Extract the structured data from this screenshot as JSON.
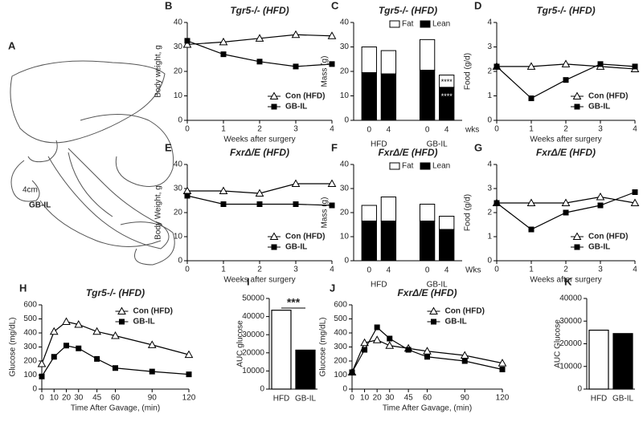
{
  "diagram": {
    "panel": "A",
    "labels": [
      "4cm",
      "GB-IL"
    ]
  },
  "chart_data": [
    {
      "type": "line",
      "panel": "B",
      "title": "Tgr5-/- (HFD)",
      "ylabel": "Body weight, g",
      "xlabel": "Weeks after surgery",
      "x": [
        0,
        1,
        2,
        3,
        4
      ],
      "xlim": [
        0,
        4
      ],
      "xticks": [
        0,
        1,
        2,
        3,
        4
      ],
      "ylim": [
        0,
        40
      ],
      "yticks": [
        0,
        10,
        20,
        30,
        40
      ],
      "legend": "lower right",
      "series": [
        {
          "name": "Con (HFD)",
          "color": "#000000",
          "marker": "triangle-open",
          "values": [
            31,
            32,
            33.5,
            35,
            34.5
          ]
        },
        {
          "name": "GB-IL",
          "color": "#000000",
          "marker": "square",
          "values": [
            32.5,
            27,
            24,
            22,
            23
          ]
        }
      ]
    },
    {
      "type": "stacked_bar",
      "panel": "C",
      "title": "Tgr5-/- (HFD)",
      "ylabel": "Mass (g)",
      "xlabel": "wks",
      "categories": [
        "0",
        "4",
        "0",
        "4"
      ],
      "groups": [
        "HFD",
        "GB-IL"
      ],
      "ylim": [
        0,
        40
      ],
      "yticks": [
        0,
        10,
        20,
        30,
        40
      ],
      "annotations": [
        "****",
        "****"
      ],
      "series": [
        {
          "name": "Fat",
          "color": "#ffffff",
          "values": [
            10.5,
            9.5,
            12.5,
            5
          ]
        },
        {
          "name": "Lean",
          "color": "#000000",
          "values": [
            19.5,
            19,
            20.5,
            13.5
          ]
        }
      ]
    },
    {
      "type": "line",
      "panel": "D",
      "title": "Tgr5-/- (HFD)",
      "ylabel": "Food (g/d)",
      "xlabel": "Weeks after surgery",
      "x": [
        0,
        1,
        2,
        3,
        4
      ],
      "xlim": [
        0,
        4
      ],
      "xticks": [
        0,
        1,
        2,
        3,
        4
      ],
      "ylim": [
        0,
        4
      ],
      "yticks": [
        0,
        1,
        2,
        3,
        4
      ],
      "legend": "lower right",
      "series": [
        {
          "name": "Con (HFD)",
          "color": "#000000",
          "marker": "triangle-open",
          "values": [
            2.2,
            2.2,
            2.3,
            2.2,
            2.1
          ]
        },
        {
          "name": "GB-IL",
          "color": "#000000",
          "marker": "square",
          "values": [
            2.2,
            0.9,
            1.65,
            2.3,
            2.2
          ]
        }
      ]
    },
    {
      "type": "line",
      "panel": "E",
      "title": "FxrΔ/E (HFD)",
      "ylabel": "Body Weight, g",
      "xlabel": "Weeks after surgery",
      "x": [
        0,
        1,
        2,
        3,
        4
      ],
      "xlim": [
        0,
        4
      ],
      "xticks": [
        0,
        1,
        2,
        3,
        4
      ],
      "ylim": [
        0,
        40
      ],
      "yticks": [
        0,
        10,
        20,
        30,
        40
      ],
      "legend": "lower right",
      "series": [
        {
          "name": "Con (HFD)",
          "color": "#000000",
          "marker": "triangle-open",
          "values": [
            29,
            29,
            28,
            32,
            32
          ]
        },
        {
          "name": "GB-IL",
          "color": "#000000",
          "marker": "square",
          "values": [
            27,
            23.5,
            23.5,
            23.5,
            23
          ]
        }
      ]
    },
    {
      "type": "stacked_bar",
      "panel": "F",
      "title": "FxrΔ/E (HFD)",
      "ylabel": "Mass (g)",
      "xlabel": "Wks",
      "categories": [
        "0",
        "4",
        "0",
        "4"
      ],
      "groups": [
        "HFD",
        "GB-IL"
      ],
      "ylim": [
        0,
        40
      ],
      "yticks": [
        0,
        10,
        20,
        30,
        40
      ],
      "annotations": [],
      "series": [
        {
          "name": "Fat",
          "color": "#ffffff",
          "values": [
            6.5,
            10,
            7,
            5.5
          ]
        },
        {
          "name": "Lean",
          "color": "#000000",
          "values": [
            16.5,
            16.5,
            16.5,
            13
          ]
        }
      ]
    },
    {
      "type": "line",
      "panel": "G",
      "title": "FxrΔ/E (HFD)",
      "ylabel": "Food (g/d)",
      "xlabel": "Weeks after surgery",
      "x": [
        0,
        1,
        2,
        3,
        4
      ],
      "xlim": [
        0,
        4
      ],
      "xticks": [
        0,
        1,
        2,
        3,
        4
      ],
      "ylim": [
        0,
        4
      ],
      "yticks": [
        0,
        1,
        2,
        3,
        4
      ],
      "legend": "lower right",
      "series": [
        {
          "name": "Con (HFD)",
          "color": "#000000",
          "marker": "triangle-open",
          "values": [
            2.4,
            2.4,
            2.4,
            2.65,
            2.4
          ]
        },
        {
          "name": "GB-IL",
          "color": "#000000",
          "marker": "square",
          "values": [
            2.4,
            1.3,
            2.0,
            2.3,
            2.85
          ]
        }
      ]
    },
    {
      "type": "line",
      "panel": "H",
      "title": "Tgr5-/- (HFD)",
      "ylabel": "Glucose (mg/dL)",
      "xlabel": "Time After Gavage, (min)",
      "x": [
        0,
        10,
        20,
        30,
        45,
        60,
        90,
        120
      ],
      "xlim": [
        0,
        120
      ],
      "xticks": [
        0,
        10,
        20,
        30,
        45,
        60,
        90,
        120
      ],
      "ylim": [
        0,
        600
      ],
      "yticks": [
        0,
        100,
        200,
        300,
        400,
        500,
        600
      ],
      "legend": "upper right",
      "series": [
        {
          "name": "Con  (HFD)",
          "color": "#000000",
          "marker": "triangle-open",
          "values": [
            180,
            410,
            480,
            460,
            410,
            380,
            315,
            245
          ]
        },
        {
          "name": "GB-IL",
          "color": "#000000",
          "marker": "square",
          "values": [
            90,
            230,
            310,
            290,
            215,
            150,
            125,
            105
          ]
        }
      ]
    },
    {
      "type": "bar",
      "panel": "I",
      "ylabel": "AUC glucose",
      "categories": [
        "HFD",
        "GB-IL"
      ],
      "colors": [
        "#ffffff",
        "#000000"
      ],
      "values": [
        43500,
        21500
      ],
      "ylim": [
        0,
        50000
      ],
      "yticks": [
        0,
        10000,
        20000,
        30000,
        40000,
        50000
      ],
      "annotations": [
        "***"
      ]
    },
    {
      "type": "line",
      "panel": "J",
      "title": "FxrΔ/E (HFD)",
      "ylabel": "Glucose (mg/dL)",
      "xlabel": "Time After Gavage, (min)",
      "x": [
        0,
        10,
        20,
        30,
        45,
        60,
        90,
        120
      ],
      "xlim": [
        0,
        120
      ],
      "xticks": [
        0,
        10,
        20,
        30,
        45,
        60,
        90,
        120
      ],
      "ylim": [
        0,
        600
      ],
      "yticks": [
        0,
        100,
        200,
        300,
        400,
        500,
        600
      ],
      "legend": "upper right",
      "series": [
        {
          "name": "Con (HFD)",
          "color": "#000000",
          "marker": "triangle-open",
          "values": [
            120,
            330,
            350,
            310,
            290,
            270,
            240,
            185
          ]
        },
        {
          "name": "GB-IL",
          "color": "#000000",
          "marker": "square",
          "values": [
            120,
            280,
            440,
            360,
            280,
            230,
            200,
            140
          ]
        }
      ]
    },
    {
      "type": "bar",
      "panel": "K",
      "ylabel": "AUC Glucose",
      "categories": [
        "HFD",
        "GB-IL"
      ],
      "colors": [
        "#ffffff",
        "#000000"
      ],
      "values": [
        26000,
        24500
      ],
      "ylim": [
        0,
        40000
      ],
      "yticks": [
        0,
        10000,
        20000,
        30000,
        40000
      ],
      "annotations": []
    }
  ]
}
